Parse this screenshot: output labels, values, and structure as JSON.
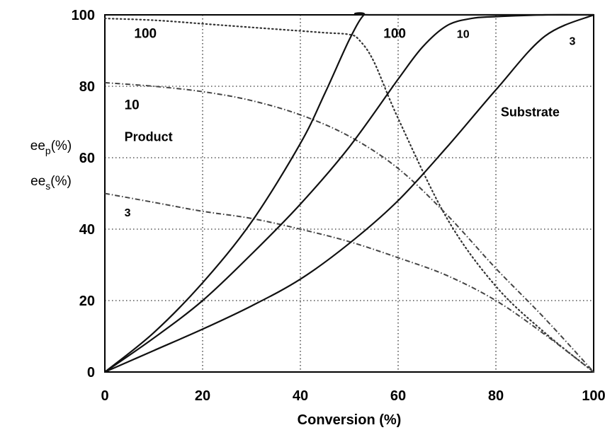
{
  "chart_data": {
    "type": "line",
    "xlabel": "Conversion (%)",
    "ylabel": [
      "ee",
      "p",
      "(%)",
      "ee",
      "s",
      "(%)"
    ],
    "xlim": [
      0,
      100
    ],
    "ylim": [
      0,
      100
    ],
    "x_ticks": [
      "0",
      "20",
      "40",
      "60",
      "80",
      "100"
    ],
    "y_ticks": [
      "0",
      "20",
      "40",
      "60",
      "80",
      "100"
    ],
    "grid": true,
    "annotations": [
      {
        "text": "100",
        "x": 6,
        "y": 95
      },
      {
        "text": "100",
        "x": 57,
        "y": 95
      },
      {
        "text": "10",
        "x": 72,
        "y": 95
      },
      {
        "text": "3",
        "x": 95,
        "y": 93
      },
      {
        "text": "10",
        "x": 4,
        "y": 75
      },
      {
        "text": "Product",
        "x": 4,
        "y": 66
      },
      {
        "text": "Substrate",
        "x": 81,
        "y": 73
      },
      {
        "text": "3",
        "x": 4,
        "y": 45
      }
    ],
    "series": [
      {
        "group": "Product",
        "E": "100",
        "style": "dotted",
        "x": [
          0,
          10,
          20,
          30,
          40,
          45,
          50,
          52,
          55,
          60,
          70,
          80,
          90,
          100
        ],
        "y": [
          99,
          98.5,
          97.5,
          96.5,
          95.5,
          95,
          94.5,
          93,
          87,
          71,
          43,
          24,
          11,
          0
        ]
      },
      {
        "group": "Product",
        "E": "10",
        "style": "dashdot",
        "x": [
          0,
          10,
          20,
          30,
          40,
          50,
          60,
          70,
          80,
          90,
          100
        ],
        "y": [
          81,
          80,
          78.5,
          76,
          72,
          66,
          57,
          44,
          29,
          15,
          0
        ]
      },
      {
        "group": "Product",
        "E": "3",
        "style": "dashdot",
        "x": [
          0,
          10,
          20,
          30,
          40,
          50,
          60,
          70,
          80,
          90,
          100
        ],
        "y": [
          50,
          47.5,
          45,
          43,
          40,
          36.5,
          32,
          27,
          20,
          10.5,
          0
        ]
      },
      {
        "group": "Substrate",
        "E": "100",
        "style": "solid",
        "x": [
          0,
          10,
          20,
          30,
          40,
          45,
          50,
          53,
          55,
          100
        ],
        "y": [
          0,
          11,
          25,
          42,
          64,
          78,
          93,
          100,
          100,
          100
        ]
      },
      {
        "group": "Substrate",
        "E": "10",
        "style": "solid",
        "x": [
          0,
          10,
          20,
          30,
          40,
          50,
          60,
          65,
          70,
          75,
          80,
          90,
          100
        ],
        "y": [
          0,
          9.5,
          20,
          33,
          47,
          63,
          82,
          91,
          97,
          99,
          99.5,
          100,
          100
        ]
      },
      {
        "group": "Substrate",
        "E": "3",
        "style": "solid",
        "x": [
          0,
          10,
          20,
          30,
          40,
          50,
          60,
          70,
          80,
          90,
          100
        ],
        "y": [
          0,
          6,
          12,
          18.5,
          26,
          36,
          48,
          63,
          79,
          94,
          100
        ]
      }
    ]
  }
}
